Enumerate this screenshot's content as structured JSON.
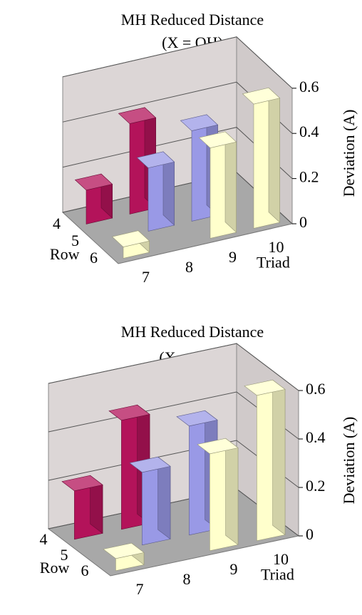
{
  "chart_data": [
    {
      "type": "bar3d",
      "title": "MH Reduced Distance",
      "subtitle": "(X = OH)",
      "categories": [
        "7",
        "8",
        "9",
        "10"
      ],
      "xlabel": "Triad",
      "ylabel": "Row",
      "zlabel": "Deviation (A)",
      "series": [
        {
          "name": "4",
          "color": "#b3135a",
          "values": [
            0.15,
            0.4,
            null,
            null
          ]
        },
        {
          "name": "5",
          "color": "#9999e6",
          "values": [
            null,
            0.28,
            0.4,
            null
          ]
        },
        {
          "name": "6",
          "color": "#ffffcc",
          "values": [
            0.05,
            null,
            0.4,
            0.55
          ]
        }
      ],
      "zlim": [
        0,
        0.6
      ],
      "zticks": [
        0,
        0.2,
        0.4,
        0.6
      ],
      "grid": true
    },
    {
      "type": "bar3d",
      "title": "MH Reduced Distance",
      "subtitle": "(X = NH₂)",
      "categories": [
        "7",
        "8",
        "9",
        "10"
      ],
      "xlabel": "Triad",
      "ylabel": "Row",
      "zlabel": "Deviation (A)",
      "series": [
        {
          "name": "4",
          "color": "#b3135a",
          "values": [
            0.2,
            0.45,
            null,
            null
          ]
        },
        {
          "name": "5",
          "color": "#9999e6",
          "values": [
            null,
            0.3,
            0.45,
            null
          ]
        },
        {
          "name": "6",
          "color": "#ffffcc",
          "values": [
            0.05,
            null,
            0.4,
            0.6
          ]
        }
      ],
      "zlim": [
        0,
        0.6
      ],
      "zticks": [
        0,
        0.2,
        0.4,
        0.6
      ],
      "grid": true
    }
  ]
}
